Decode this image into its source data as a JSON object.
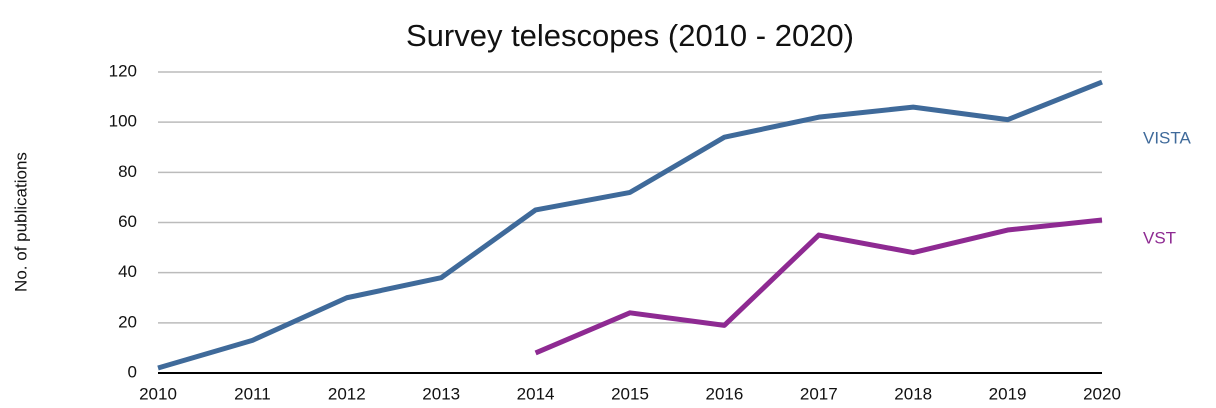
{
  "chart_data": {
    "type": "line",
    "title": "Survey telescopes (2010 - 2020)",
    "y_label": "No. of publications",
    "x": [
      2010,
      2011,
      2012,
      2013,
      2014,
      2015,
      2016,
      2017,
      2018,
      2019,
      2020
    ],
    "series": [
      {
        "name": "VISTA",
        "color": "#3f6a9a",
        "values": [
          2,
          13,
          30,
          38,
          65,
          72,
          94,
          102,
          106,
          101,
          116
        ]
      },
      {
        "name": "VST",
        "color": "#8e2a92",
        "values": [
          null,
          null,
          null,
          null,
          8,
          24,
          19,
          55,
          48,
          57,
          61
        ]
      }
    ],
    "xlim": [
      2010,
      2020
    ],
    "xticks": [
      2010,
      2011,
      2012,
      2013,
      2014,
      2015,
      2016,
      2017,
      2018,
      2019,
      2020
    ],
    "ylim": [
      0,
      120
    ],
    "yticks": [
      0,
      20,
      40,
      60,
      80,
      100,
      120
    ],
    "grid": true
  }
}
